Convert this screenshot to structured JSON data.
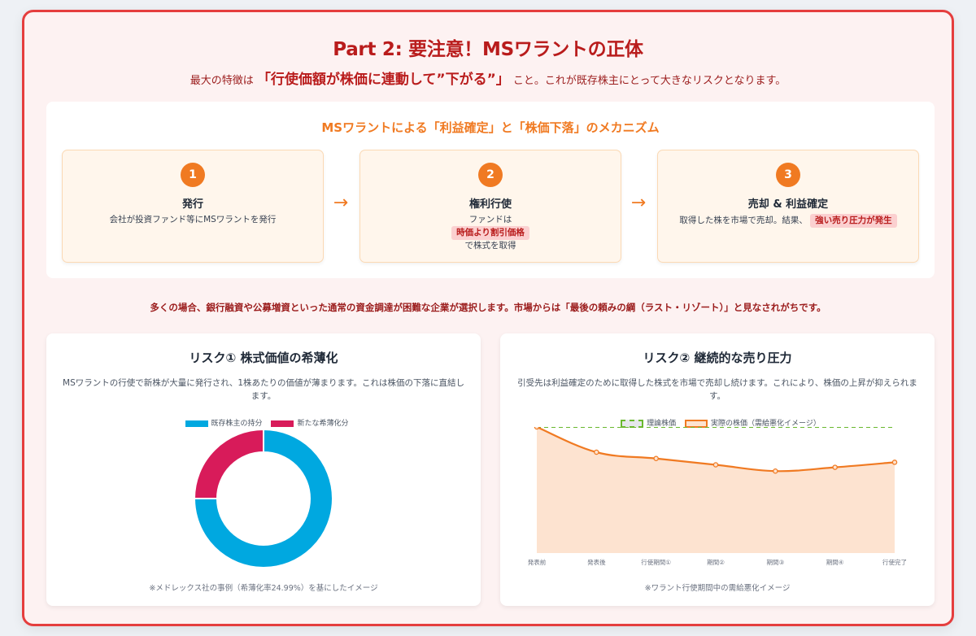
{
  "header": {
    "title": "Part 2: 要注意！MSワラントの正体",
    "subtitle_pre": "最大の特徴は",
    "subtitle_emph": "「行使価額が株価に連動して”下がる”」",
    "subtitle_post": "こと。これが既存株主にとって大きなリスクとなります。"
  },
  "mechanism": {
    "title": "MSワラントによる「利益確定」と「株価下落」のメカニズム",
    "arrow_glyph": "→",
    "steps": [
      {
        "num": "1",
        "name": "発行",
        "desc": "会社が投資ファンド等にMSワラントを発行"
      },
      {
        "num": "2",
        "name": "権利行使",
        "desc_pre": "ファンドは",
        "highlight": "時価より割引価格",
        "desc_post": "で株式を取得"
      },
      {
        "num": "3",
        "name": "売却 & 利益確定",
        "desc_pre": "取得した株を市場で売却。結果、",
        "highlight": "強い売り圧力が発生"
      }
    ]
  },
  "note": "多くの場合、銀行融資や公募増資といった通常の資金調達が困難な企業が選択します。市場からは「最後の頼みの綱（ラスト・リゾート）」と見なされがちです。",
  "risk1": {
    "title": "リスク① 株式価値の希薄化",
    "desc": "MSワラントの行使で新株が大量に発行され、1株あたりの価値が薄まります。これは株価の下落に直結します。",
    "footnote": "※メドレックス社の事例（希薄化率24.99%）を基にしたイメージ"
  },
  "risk2": {
    "title": "リスク② 継続的な売り圧力",
    "desc": "引受先は利益確定のために取得した株式を市場で売却し続けます。これにより、株価の上昇が抑えられます。",
    "footnote": "※ワラント行使期間中の需給悪化イメージ"
  },
  "colors": {
    "accent_red": "#b91c1c",
    "accent_orange": "#f07a22",
    "blue": "#00a8e0",
    "crimson": "#d81b5a",
    "green_dash": "#6ab82e",
    "area_fill": "#fde3d0"
  },
  "chart_data": [
    {
      "type": "pie",
      "variant": "doughnut",
      "title": "リスク① 株式価値の希薄化",
      "categories": [
        "既存株主の持分",
        "新たな希薄化分"
      ],
      "values": [
        75.01,
        24.99
      ],
      "colors": [
        "#00a8e0",
        "#d81b5a"
      ],
      "legend_position": "top"
    },
    {
      "type": "line",
      "title": "リスク② 継続的な売り圧力",
      "categories": [
        "発表前",
        "発表後",
        "行使期間①",
        "期間②",
        "期間③",
        "期間④",
        "行使完了"
      ],
      "series": [
        {
          "name": "理論株価",
          "values": [
            100,
            100,
            100,
            100,
            100,
            100,
            100
          ],
          "style": "dashed",
          "color": "#6ab82e"
        },
        {
          "name": "実際の株価（需給悪化イメージ）",
          "values": [
            100,
            80,
            75,
            70,
            65,
            68,
            72
          ],
          "style": "area",
          "color": "#f07a22"
        }
      ],
      "ylim": [
        0,
        100
      ],
      "grid": false,
      "legend_position": "top"
    }
  ]
}
